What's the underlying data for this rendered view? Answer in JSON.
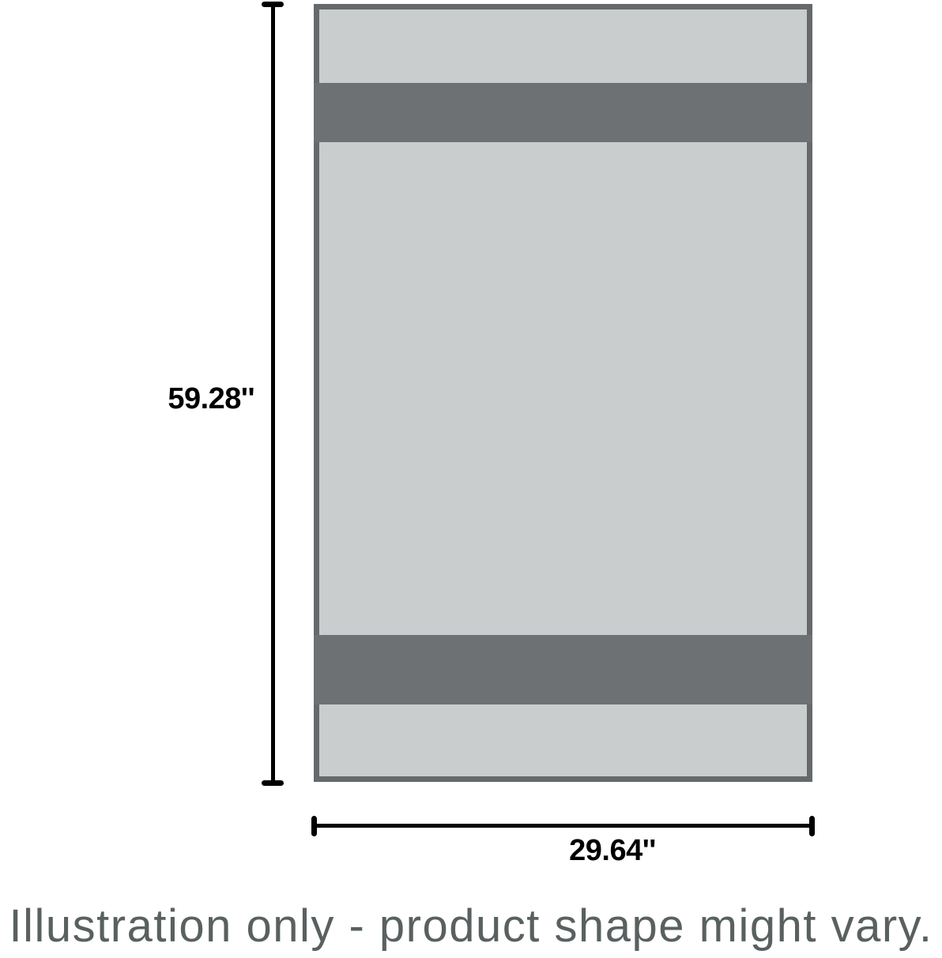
{
  "illustration": {
    "height_label": "59.28''",
    "width_label": "29.64''",
    "caption": "Illustration only - product shape might vary.",
    "colors": {
      "background": "#ffffff",
      "product_fill": "#c9cdcd",
      "product_border": "#66696b",
      "product_stripe": "#6e7173",
      "dimension_line": "#000000",
      "dimension_text": "#000000",
      "caption_text": "#596060"
    }
  }
}
